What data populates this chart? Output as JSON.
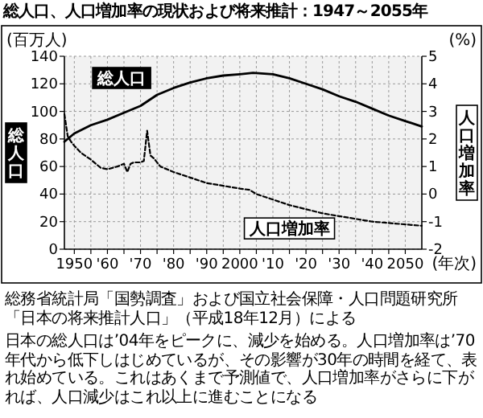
{
  "chart_data": {
    "type": "line",
    "title": "総人口、人口増加率の現状および将来推計：1947～2055年",
    "ylabel": "総人口",
    "y2label": "人口増加率",
    "annotations": [
      "(百万人)",
      "(%)",
      "(年次)",
      "総務省統計局「国勢調査」および国立社会保障・人口問題研究所",
      "「日本の将来推計人口」（平成18年12月）による",
      "日本の総人口は’04年をピークに、減少を始める。人口増加率は’70年代から低下しはじめているが、その影響が30年の時間を経て、表れ始めている。これはあくまで予測値で、人口増加率がさらに下がれば、人口減少はこれ以上に進むことになる"
    ],
    "xlim": [
      1947,
      2055
    ],
    "xticks": [
      {
        "value": 1950,
        "label": "1950"
      },
      {
        "value": 1955,
        "label": null
      },
      {
        "value": 1960,
        "label": "'60"
      },
      {
        "value": 1965,
        "label": null
      },
      {
        "value": 1970,
        "label": "'70"
      },
      {
        "value": 1975,
        "label": null
      },
      {
        "value": 1980,
        "label": "'80"
      },
      {
        "value": 1985,
        "label": null
      },
      {
        "value": 1990,
        "label": "'90"
      },
      {
        "value": 1995,
        "label": null
      },
      {
        "value": 2000,
        "label": "2000"
      },
      {
        "value": 2005,
        "label": null
      },
      {
        "value": 2010,
        "label": "'10"
      },
      {
        "value": 2015,
        "label": null
      },
      {
        "value": 2020,
        "label": "'20"
      },
      {
        "value": 2025,
        "label": null
      },
      {
        "value": 2030,
        "label": "'30"
      },
      {
        "value": 2035,
        "label": null
      },
      {
        "value": 2040,
        "label": "'40"
      },
      {
        "value": 2045,
        "label": null
      },
      {
        "value": 2050,
        "label": "2050"
      }
    ],
    "ylim": [
      0,
      140
    ],
    "yticks": [
      0,
      20,
      40,
      60,
      80,
      100,
      120,
      140
    ],
    "y2lim": [
      -2,
      5
    ],
    "y2ticks": [
      -2,
      -1,
      0,
      1,
      2,
      3,
      4,
      5
    ],
    "grid": true,
    "series": [
      {
        "name": "総人口",
        "color": "#000000",
        "line_style": "solid",
        "x": [
          1947,
          1950,
          1955,
          1960,
          1965,
          1970,
          1975,
          1980,
          1985,
          1990,
          1995,
          2000,
          2004,
          2010,
          2015,
          2020,
          2025,
          2030,
          2035,
          2040,
          2045,
          2050,
          2055
        ],
        "values": [
          78,
          84,
          90,
          94,
          99,
          104,
          112,
          117,
          121,
          124,
          126,
          127,
          128,
          127,
          124,
          120,
          116,
          111,
          107,
          102,
          97,
          93,
          89
        ]
      },
      {
        "name": "人口増加率",
        "color": "#000000",
        "line_style": "dashed",
        "axis": "y2",
        "x": [
          1947,
          1948,
          1949,
          1950,
          1952,
          1955,
          1958,
          1960,
          1963,
          1965,
          1966,
          1967,
          1968,
          1970,
          1971,
          1972,
          1973,
          1974,
          1976,
          1980,
          1985,
          1990,
          1995,
          2000,
          2003,
          2005,
          2010,
          2015,
          2020,
          2025,
          2030,
          2035,
          2040,
          2045,
          2050,
          2055
        ],
        "values": [
          2.9,
          2.1,
          1.9,
          1.75,
          1.5,
          1.25,
          0.95,
          0.9,
          1.0,
          1.1,
          0.8,
          1.1,
          1.15,
          1.15,
          1.2,
          2.3,
          1.4,
          1.3,
          1.0,
          0.8,
          0.6,
          0.4,
          0.3,
          0.2,
          0.15,
          0.0,
          -0.2,
          -0.4,
          -0.55,
          -0.7,
          -0.8,
          -0.9,
          -1.0,
          -1.05,
          -1.1,
          -1.15
        ]
      }
    ]
  }
}
